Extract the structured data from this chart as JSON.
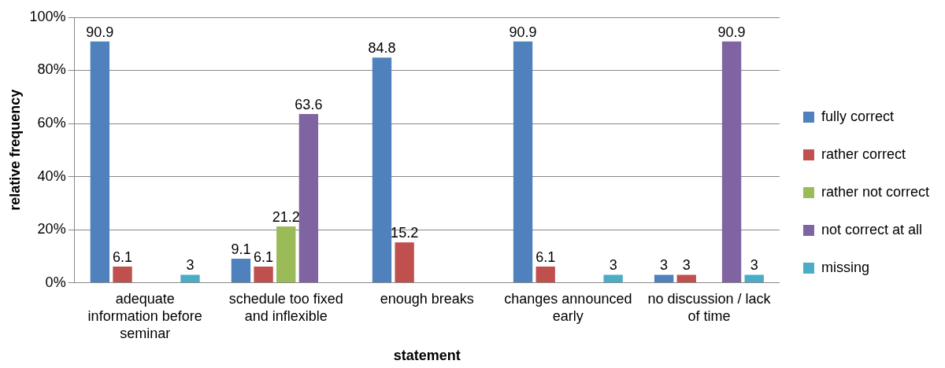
{
  "chart_data": {
    "type": "bar",
    "xlabel": "statement",
    "ylabel": "relative frequency",
    "categories": [
      "adequate information before seminar",
      "schedule too fixed and inflexible",
      "enough breaks",
      "changes announced early",
      "no discussion / lack of time"
    ],
    "series": [
      {
        "name": "fully correct",
        "color": "#4f81bd",
        "values": [
          90.9,
          9.1,
          84.8,
          90.9,
          3
        ]
      },
      {
        "name": "rather correct",
        "color": "#c0504d",
        "values": [
          6.1,
          6.1,
          15.2,
          6.1,
          3
        ]
      },
      {
        "name": "rather not correct",
        "color": "#9bbb59",
        "values": [
          null,
          21.2,
          null,
          null,
          null
        ]
      },
      {
        "name": "not correct at all",
        "color": "#8064a2",
        "values": [
          null,
          63.6,
          null,
          null,
          90.9
        ]
      },
      {
        "name": "missing",
        "color": "#4bacc6",
        "values": [
          3,
          null,
          null,
          3,
          3
        ]
      }
    ],
    "ylim": [
      0,
      100
    ],
    "yticks": [
      {
        "value": 0,
        "label": "0%"
      },
      {
        "value": 20,
        "label": "20%"
      },
      {
        "value": 40,
        "label": "40%"
      },
      {
        "value": 60,
        "label": "60%"
      },
      {
        "value": 80,
        "label": "80%"
      },
      {
        "value": 100,
        "label": "100%"
      }
    ],
    "grid": "y",
    "legend": "right",
    "data_labels": true
  }
}
